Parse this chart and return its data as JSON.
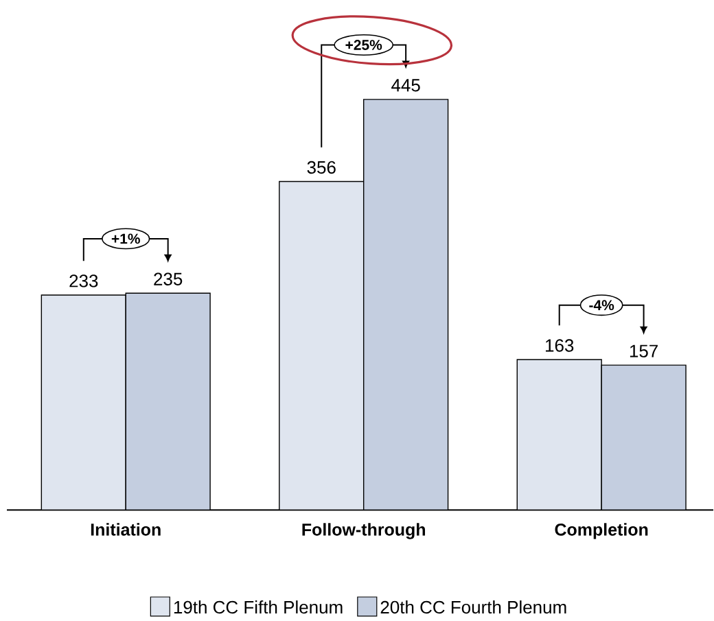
{
  "chart_data": {
    "type": "bar",
    "categories": [
      "Initiation",
      "Follow-through",
      "Completion"
    ],
    "series": [
      {
        "name": "19th CC Fifth Plenum",
        "color": "#dfe5ef",
        "values": [
          233,
          356,
          163
        ]
      },
      {
        "name": "20th CC Fourth Plenum",
        "color": "#c4cee0",
        "values": [
          235,
          445,
          157
        ]
      }
    ],
    "data_labels": true,
    "legend": "bottom",
    "annotations": [
      "+1%",
      "+25%",
      "-4%"
    ]
  }
}
